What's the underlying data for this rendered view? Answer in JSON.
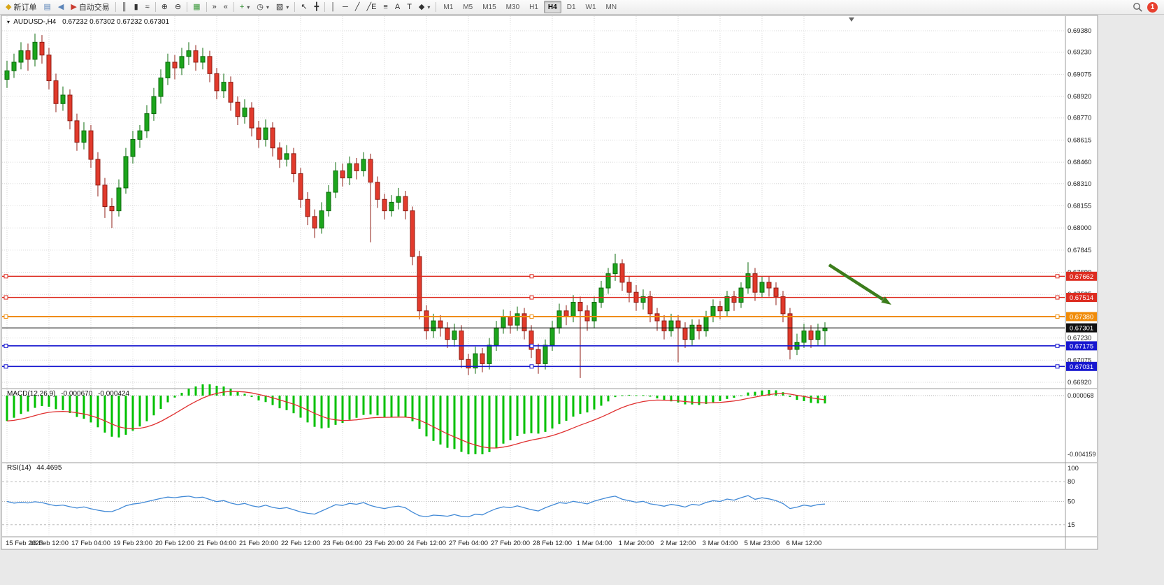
{
  "icons": {
    "chart_menu": "▾"
  },
  "toolbar": {
    "items": [
      {
        "name": "new-order-button",
        "label": "新订单",
        "glyph": "◆",
        "color": "#d8a517",
        "icon": "new-order-icon"
      },
      {
        "name": "charts-button",
        "glyph": "▤",
        "color": "#5b84b8",
        "icon": "chart-window-icon"
      },
      {
        "name": "alerts-button",
        "glyph": "◀",
        "color": "#5b84b8",
        "icon": "sound-icon"
      },
      {
        "name": "autotrading-button",
        "label": "自动交易",
        "glyph": "▶",
        "color": "#c93a2e",
        "icon": "autotrade-icon"
      },
      {
        "type": "sep"
      },
      {
        "name": "bars-view-button",
        "glyph": "║",
        "icon": "ohlc-bars-icon"
      },
      {
        "name": "candles-view-button",
        "glyph": "▮",
        "icon": "candlestick-icon"
      },
      {
        "name": "line-view-button",
        "glyph": "≈",
        "icon": "line-chart-icon"
      },
      {
        "type": "sep"
      },
      {
        "name": "zoom-in-button",
        "glyph": "⊕",
        "icon": "zoom-in-icon"
      },
      {
        "name": "zoom-out-button",
        "glyph": "⊖",
        "icon": "zoom-out-icon"
      },
      {
        "type": "sep"
      },
      {
        "name": "tile-windows-button",
        "glyph": "▦",
        "color": "#3d9a3d",
        "icon": "tile-windows-icon"
      },
      {
        "type": "sep"
      },
      {
        "name": "auto-scroll-button",
        "glyph": "»",
        "icon": "auto-scroll-icon"
      },
      {
        "name": "chart-shift-button",
        "glyph": "«",
        "icon": "chart-shift-icon"
      },
      {
        "type": "sep"
      },
      {
        "name": "indicators-button",
        "glyph": "+",
        "color": "#2e8b2e",
        "dropdown": true,
        "icon": "add-indicator-icon"
      },
      {
        "name": "periods-button",
        "glyph": "◷",
        "dropdown": true,
        "icon": "clock-icon"
      },
      {
        "name": "templates-button",
        "glyph": "▧",
        "dropdown": true,
        "icon": "template-icon"
      },
      {
        "type": "sep"
      },
      {
        "name": "cursor-button",
        "glyph": "↖",
        "icon": "cursor-icon"
      },
      {
        "name": "crosshair-button",
        "glyph": "╋",
        "icon": "crosshair-icon"
      },
      {
        "type": "sep"
      },
      {
        "name": "vertical-line-button",
        "glyph": "│",
        "icon": "vertical-line-icon"
      },
      {
        "name": "horizontal-line-button",
        "glyph": "─",
        "icon": "horizontal-line-icon"
      },
      {
        "name": "trendline-button",
        "glyph": "╱",
        "icon": "trendline-icon"
      },
      {
        "name": "equidistant-channel-button",
        "glyph": "╱E",
        "icon": "equidistant-channel-icon"
      },
      {
        "name": "fibonacci-button",
        "glyph": "≡",
        "icon": "fibonacci-icon"
      },
      {
        "name": "text-button",
        "glyph": "A",
        "icon": "text-icon"
      },
      {
        "name": "text-label-button",
        "glyph": "T",
        "icon": "text-label-icon"
      },
      {
        "name": "shapes-button",
        "glyph": "◆",
        "dropdown": true,
        "icon": "shapes-icon"
      },
      {
        "type": "sep"
      }
    ],
    "timeframes": {
      "options": [
        "M1",
        "M5",
        "M15",
        "M30",
        "H1",
        "H4",
        "D1",
        "W1",
        "MN"
      ],
      "active": "H4"
    },
    "notification_badge": "1"
  },
  "chart": {
    "title_symbol": "AUDUSD-,H4",
    "title_ohlc": "0.67232 0.67302 0.67232 0.67301"
  },
  "price_axis": {
    "labels": [
      "0.69380",
      "0.69230",
      "0.69075",
      "0.68920",
      "0.68770",
      "0.68615",
      "0.68460",
      "0.68310",
      "0.68155",
      "0.68000",
      "0.67845",
      "0.67690",
      "0.67535",
      "0.67380",
      "0.67230",
      "0.67075",
      "0.66920"
    ]
  },
  "hlines": [
    {
      "price": 0.67662,
      "label": "0.67662",
      "color": "#dd2c20",
      "width": 1.4,
      "handles": true,
      "role": "resistance-line"
    },
    {
      "price": 0.67514,
      "label": "0.67514",
      "color": "#dd2c20",
      "width": 1.4,
      "handles": true,
      "role": "resistance-line"
    },
    {
      "price": 0.6738,
      "label": "0.67380",
      "color": "#f08c0a",
      "width": 2,
      "handles": true,
      "role": "pivot-line"
    },
    {
      "price": 0.67301,
      "label": "0.67301",
      "color": "#111111",
      "width": 1,
      "handles": false,
      "role": "bid-price-line"
    },
    {
      "price": 0.67175,
      "label": "0.67175",
      "color": "#1717cf",
      "width": 1.6,
      "handles": true,
      "role": "support-line"
    },
    {
      "price": 0.67031,
      "label": "0.67031",
      "color": "#1717cf",
      "width": 1.6,
      "handles": true,
      "role": "support-line"
    }
  ],
  "arrow": {
    "color": "#3c7d1c"
  },
  "time_axis": {
    "labels": [
      "15 Feb 2023",
      "16 Feb 12:00",
      "17 Feb 04:00",
      "19 Feb 23:00",
      "20 Feb 12:00",
      "21 Feb 04:00",
      "21 Feb 20:00",
      "22 Feb 12:00",
      "23 Feb 04:00",
      "23 Feb 20:00",
      "24 Feb 12:00",
      "27 Feb 04:00",
      "27 Feb 20:00",
      "28 Feb 12:00",
      "1 Mar 04:00",
      "1 Mar 20:00",
      "2 Mar 12:00",
      "3 Mar 04:00",
      "5 Mar 23:00",
      "6 Mar 12:00"
    ]
  },
  "chart_data": {
    "type": "candlestick",
    "symbol": "AUDUSD-",
    "period": "H4",
    "bull_color": "#1ca51c",
    "bear_color": "#e23a2c",
    "candles": [
      [
        0.6904,
        0.6917,
        0.6898,
        0.691
      ],
      [
        0.691,
        0.6922,
        0.6905,
        0.6916
      ],
      [
        0.6916,
        0.693,
        0.6911,
        0.6924
      ],
      [
        0.6924,
        0.6929,
        0.691,
        0.6918
      ],
      [
        0.6918,
        0.6936,
        0.6913,
        0.693
      ],
      [
        0.693,
        0.6935,
        0.6915,
        0.6921
      ],
      [
        0.6921,
        0.6926,
        0.6897,
        0.6903
      ],
      [
        0.6903,
        0.6908,
        0.6881,
        0.6887
      ],
      [
        0.6887,
        0.6899,
        0.6882,
        0.6893
      ],
      [
        0.6893,
        0.6897,
        0.6869,
        0.6875
      ],
      [
        0.6875,
        0.688,
        0.6854,
        0.686
      ],
      [
        0.686,
        0.6874,
        0.6855,
        0.6868
      ],
      [
        0.6868,
        0.6872,
        0.6842,
        0.6848
      ],
      [
        0.6848,
        0.6853,
        0.6822,
        0.683
      ],
      [
        0.683,
        0.6835,
        0.6807,
        0.6815
      ],
      [
        0.6815,
        0.6821,
        0.68,
        0.6812
      ],
      [
        0.6812,
        0.6834,
        0.6808,
        0.6828
      ],
      [
        0.6828,
        0.6856,
        0.6824,
        0.685
      ],
      [
        0.685,
        0.6868,
        0.6845,
        0.6862
      ],
      [
        0.6862,
        0.6872,
        0.6856,
        0.6868
      ],
      [
        0.6868,
        0.6886,
        0.6863,
        0.688
      ],
      [
        0.688,
        0.6898,
        0.6875,
        0.6892
      ],
      [
        0.6892,
        0.6911,
        0.6887,
        0.6905
      ],
      [
        0.6905,
        0.6922,
        0.69,
        0.6916
      ],
      [
        0.6916,
        0.6921,
        0.6904,
        0.6912
      ],
      [
        0.6912,
        0.6926,
        0.6907,
        0.692
      ],
      [
        0.692,
        0.693,
        0.6914,
        0.6924
      ],
      [
        0.6924,
        0.6928,
        0.691,
        0.6916
      ],
      [
        0.6916,
        0.6926,
        0.6911,
        0.692
      ],
      [
        0.692,
        0.6924,
        0.6902,
        0.6908
      ],
      [
        0.6908,
        0.6912,
        0.689,
        0.6896
      ],
      [
        0.6896,
        0.6908,
        0.6891,
        0.6902
      ],
      [
        0.6902,
        0.6906,
        0.6882,
        0.6888
      ],
      [
        0.6888,
        0.6892,
        0.6872,
        0.6878
      ],
      [
        0.6878,
        0.689,
        0.6873,
        0.6884
      ],
      [
        0.6884,
        0.6888,
        0.6864,
        0.687
      ],
      [
        0.687,
        0.6875,
        0.6856,
        0.6862
      ],
      [
        0.6862,
        0.6876,
        0.6857,
        0.687
      ],
      [
        0.687,
        0.6874,
        0.685,
        0.6856
      ],
      [
        0.6856,
        0.686,
        0.6842,
        0.6848
      ],
      [
        0.6848,
        0.6858,
        0.6843,
        0.6852
      ],
      [
        0.6852,
        0.6856,
        0.6832,
        0.6838
      ],
      [
        0.6838,
        0.6842,
        0.6814,
        0.682
      ],
      [
        0.682,
        0.6825,
        0.6802,
        0.6808
      ],
      [
        0.6808,
        0.6813,
        0.6793,
        0.68
      ],
      [
        0.68,
        0.6818,
        0.6796,
        0.6812
      ],
      [
        0.6812,
        0.683,
        0.6808,
        0.6825
      ],
      [
        0.6825,
        0.6846,
        0.6821,
        0.684
      ],
      [
        0.684,
        0.6845,
        0.6829,
        0.6835
      ],
      [
        0.6835,
        0.685,
        0.683,
        0.6845
      ],
      [
        0.6845,
        0.6849,
        0.6834,
        0.684
      ],
      [
        0.684,
        0.6853,
        0.6836,
        0.6848
      ],
      [
        0.6848,
        0.6852,
        0.679,
        0.6832
      ],
      [
        0.6832,
        0.6836,
        0.6814,
        0.682
      ],
      [
        0.682,
        0.6824,
        0.6806,
        0.6812
      ],
      [
        0.6812,
        0.6823,
        0.6808,
        0.6818
      ],
      [
        0.6818,
        0.6828,
        0.6813,
        0.6822
      ],
      [
        0.6822,
        0.6826,
        0.6806,
        0.6812
      ],
      [
        0.6812,
        0.6815,
        0.6774,
        0.678
      ],
      [
        0.678,
        0.6784,
        0.6736,
        0.6742
      ],
      [
        0.6742,
        0.6746,
        0.6722,
        0.6728
      ],
      [
        0.6728,
        0.674,
        0.6723,
        0.6735
      ],
      [
        0.6735,
        0.6739,
        0.6724,
        0.673
      ],
      [
        0.673,
        0.6734,
        0.6716,
        0.6722
      ],
      [
        0.6722,
        0.6733,
        0.6717,
        0.6728
      ],
      [
        0.6728,
        0.6732,
        0.6702,
        0.6708
      ],
      [
        0.6708,
        0.6712,
        0.6697,
        0.6702
      ],
      [
        0.6702,
        0.6717,
        0.6698,
        0.6712
      ],
      [
        0.6712,
        0.6716,
        0.6699,
        0.6705
      ],
      [
        0.6705,
        0.6723,
        0.6701,
        0.6718
      ],
      [
        0.6718,
        0.6735,
        0.6714,
        0.673
      ],
      [
        0.673,
        0.6743,
        0.6726,
        0.6738
      ],
      [
        0.6738,
        0.6742,
        0.6726,
        0.6732
      ],
      [
        0.6732,
        0.6745,
        0.6728,
        0.674
      ],
      [
        0.674,
        0.6744,
        0.6722,
        0.6728
      ],
      [
        0.6728,
        0.6732,
        0.6709,
        0.6715
      ],
      [
        0.6715,
        0.6719,
        0.6698,
        0.6705
      ],
      [
        0.6705,
        0.6722,
        0.6701,
        0.6718
      ],
      [
        0.6718,
        0.6735,
        0.6714,
        0.673
      ],
      [
        0.673,
        0.6747,
        0.6726,
        0.6742
      ],
      [
        0.6742,
        0.6746,
        0.6732,
        0.6738
      ],
      [
        0.6738,
        0.6753,
        0.6734,
        0.6748
      ],
      [
        0.6748,
        0.6752,
        0.6695,
        0.6742
      ],
      [
        0.6742,
        0.6746,
        0.6728,
        0.6735
      ],
      [
        0.6735,
        0.6752,
        0.673,
        0.6748
      ],
      [
        0.6748,
        0.6763,
        0.6744,
        0.6758
      ],
      [
        0.6758,
        0.6772,
        0.6754,
        0.6768
      ],
      [
        0.6768,
        0.6782,
        0.6763,
        0.6775
      ],
      [
        0.6775,
        0.6778,
        0.6756,
        0.6762
      ],
      [
        0.6762,
        0.6766,
        0.6748,
        0.6755
      ],
      [
        0.6755,
        0.676,
        0.6742,
        0.6748
      ],
      [
        0.6748,
        0.6757,
        0.6743,
        0.6752
      ],
      [
        0.6752,
        0.6756,
        0.6734,
        0.674
      ],
      [
        0.674,
        0.6744,
        0.6728,
        0.6735
      ],
      [
        0.6735,
        0.6739,
        0.6722,
        0.6728
      ],
      [
        0.6728,
        0.674,
        0.6724,
        0.6735
      ],
      [
        0.6735,
        0.6739,
        0.6706,
        0.673
      ],
      [
        0.673,
        0.6734,
        0.6716,
        0.6722
      ],
      [
        0.6722,
        0.6736,
        0.6718,
        0.6732
      ],
      [
        0.6732,
        0.6736,
        0.6722,
        0.6728
      ],
      [
        0.6728,
        0.6742,
        0.6724,
        0.6738
      ],
      [
        0.6738,
        0.675,
        0.6734,
        0.6745
      ],
      [
        0.6745,
        0.6749,
        0.6736,
        0.6742
      ],
      [
        0.6742,
        0.6756,
        0.6738,
        0.6752
      ],
      [
        0.6752,
        0.6756,
        0.6742,
        0.6748
      ],
      [
        0.6748,
        0.6762,
        0.6744,
        0.6758
      ],
      [
        0.6758,
        0.6776,
        0.6754,
        0.6768
      ],
      [
        0.6768,
        0.6772,
        0.6749,
        0.6755
      ],
      [
        0.6755,
        0.6766,
        0.6751,
        0.6762
      ],
      [
        0.6762,
        0.6766,
        0.6752,
        0.6758
      ],
      [
        0.6758,
        0.6762,
        0.6746,
        0.6752
      ],
      [
        0.6752,
        0.6756,
        0.6734,
        0.674
      ],
      [
        0.674,
        0.6744,
        0.6708,
        0.6715
      ],
      [
        0.6715,
        0.6726,
        0.6711,
        0.672
      ],
      [
        0.672,
        0.6733,
        0.6716,
        0.6728
      ],
      [
        0.6728,
        0.6732,
        0.6716,
        0.6722
      ],
      [
        0.6722,
        0.6733,
        0.6718,
        0.6728
      ],
      [
        0.6728,
        0.6734,
        0.6718,
        0.673
      ]
    ],
    "indicators": [
      {
        "type": "MACD",
        "label": "MACD(12,26,9)",
        "params": [
          12,
          26,
          9
        ],
        "values": [
          "-0.000670",
          "-0.000424"
        ],
        "axis_labels": [
          "0.000068",
          "-0.004159"
        ],
        "histogram_color": "#00c000",
        "signal_color": "#e03030"
      },
      {
        "type": "RSI",
        "label": "RSI(14)",
        "period": 14,
        "value": "44.4695",
        "axis_labels": [
          "100",
          "80",
          "50",
          "15"
        ],
        "levels": [
          80,
          50,
          15
        ],
        "line_color": "#4189d6"
      }
    ]
  }
}
